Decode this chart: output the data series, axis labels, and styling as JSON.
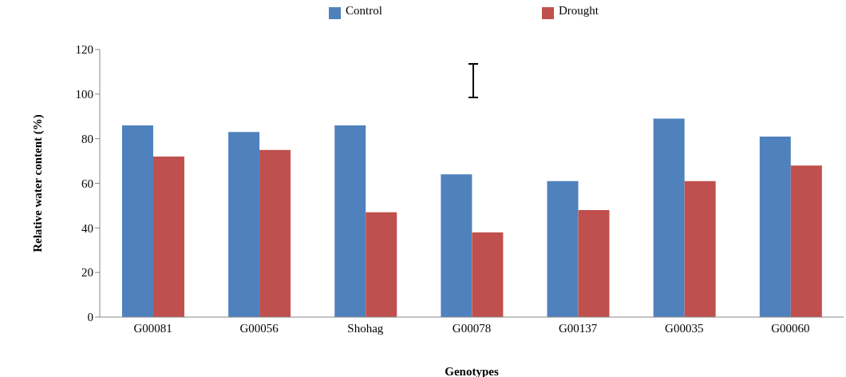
{
  "chart_data": {
    "type": "bar",
    "xlabel": "Genotypes",
    "ylabel": "Relative water content (%)",
    "categories": [
      "G00081",
      "G00056",
      "Shohag",
      "G00078",
      "G00137",
      "G00035",
      "G00060"
    ],
    "series": [
      {
        "name": "Control",
        "color": "#4f81bd",
        "values": [
          86,
          83,
          86,
          64,
          61,
          89,
          81
        ]
      },
      {
        "name": "Drought",
        "color": "#c0504d",
        "values": [
          72,
          75,
          47,
          38,
          48,
          61,
          68
        ]
      }
    ],
    "ylim": [
      0,
      120
    ],
    "yticks": [
      0,
      20,
      40,
      60,
      80,
      100,
      120
    ],
    "legend": "top"
  }
}
